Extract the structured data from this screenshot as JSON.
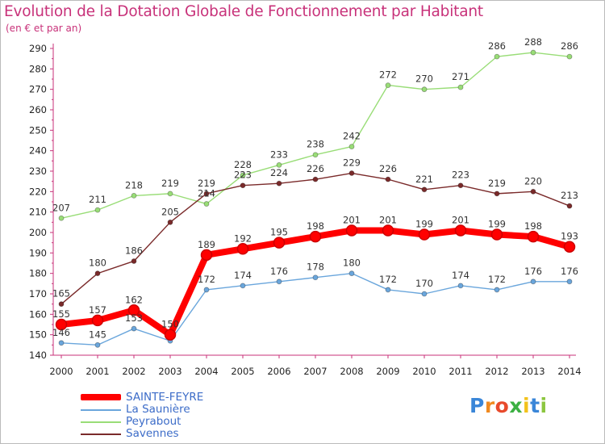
{
  "title": "Evolution de la Dotation Globale de Fonctionnement par Habitant",
  "subtitle": "(en € et par an)",
  "logo": {
    "text": "ProXiti",
    "letters": [
      "P",
      "r",
      "o",
      "x",
      "i",
      "t",
      "i"
    ],
    "colors": [
      "#3a86d8",
      "#f08a20",
      "#e84a2c",
      "#3cb043",
      "#f2c21b",
      "#3a86d8",
      "#8cc63f"
    ]
  },
  "chart_data": {
    "type": "line",
    "title": "Evolution de la Dotation Globale de Fonctionnement par Habitant",
    "subtitle": "(en € et par an)",
    "xlabel": "",
    "ylabel": "",
    "x": [
      "2000",
      "2001",
      "2002",
      "2003",
      "2004",
      "2005",
      "2006",
      "2007",
      "2008",
      "2009",
      "2010",
      "2011",
      "2012",
      "2013",
      "2014"
    ],
    "ylim": [
      140,
      290
    ],
    "yticks": [
      140,
      150,
      160,
      170,
      180,
      190,
      200,
      210,
      220,
      230,
      240,
      250,
      260,
      270,
      280,
      290
    ],
    "grid": false,
    "legend_position": "bottom-left",
    "series": [
      {
        "name": "SAINTE-FEYRE",
        "color": "#ff0000",
        "values": [
          155,
          157,
          162,
          150,
          189,
          192,
          195,
          198,
          201,
          201,
          199,
          201,
          199,
          198,
          193
        ]
      },
      {
        "name": "La Saunière",
        "color": "#6aa6dc",
        "values": [
          146,
          145,
          153,
          147,
          172,
          174,
          176,
          178,
          180,
          172,
          170,
          174,
          172,
          176,
          176
        ]
      },
      {
        "name": "Peyrabout",
        "color": "#99dd77",
        "values": [
          207,
          211,
          218,
          219,
          214,
          228,
          233,
          238,
          242,
          272,
          270,
          271,
          286,
          288,
          286
        ]
      },
      {
        "name": "Savennes",
        "color": "#7a2a2a",
        "values": [
          165,
          180,
          186,
          205,
          219,
          223,
          224,
          226,
          229,
          226,
          221,
          223,
          219,
          220,
          213
        ]
      }
    ],
    "data_labels": {
      "SAINTE-FEYRE": [
        "155",
        "157",
        "162",
        "150",
        "189",
        "192",
        "195",
        "198",
        "201",
        "201",
        "199",
        "201",
        "199",
        "198",
        "193"
      ],
      "La Saunière": [
        "146",
        "145",
        "153",
        "",
        "172",
        "174",
        "176",
        "178",
        "180",
        "172",
        "170",
        "174",
        "172",
        "176",
        "176"
      ],
      "Peyrabout": [
        "207",
        "211",
        "218",
        "219",
        "214",
        "228",
        "233",
        "238",
        "242",
        "272",
        "270",
        "271",
        "286",
        "288",
        "286"
      ],
      "Savennes": [
        "165",
        "180",
        "186",
        "205",
        "219",
        "223",
        "224",
        "226",
        "229",
        "226",
        "221",
        "223",
        "219",
        "220",
        "213"
      ]
    }
  }
}
